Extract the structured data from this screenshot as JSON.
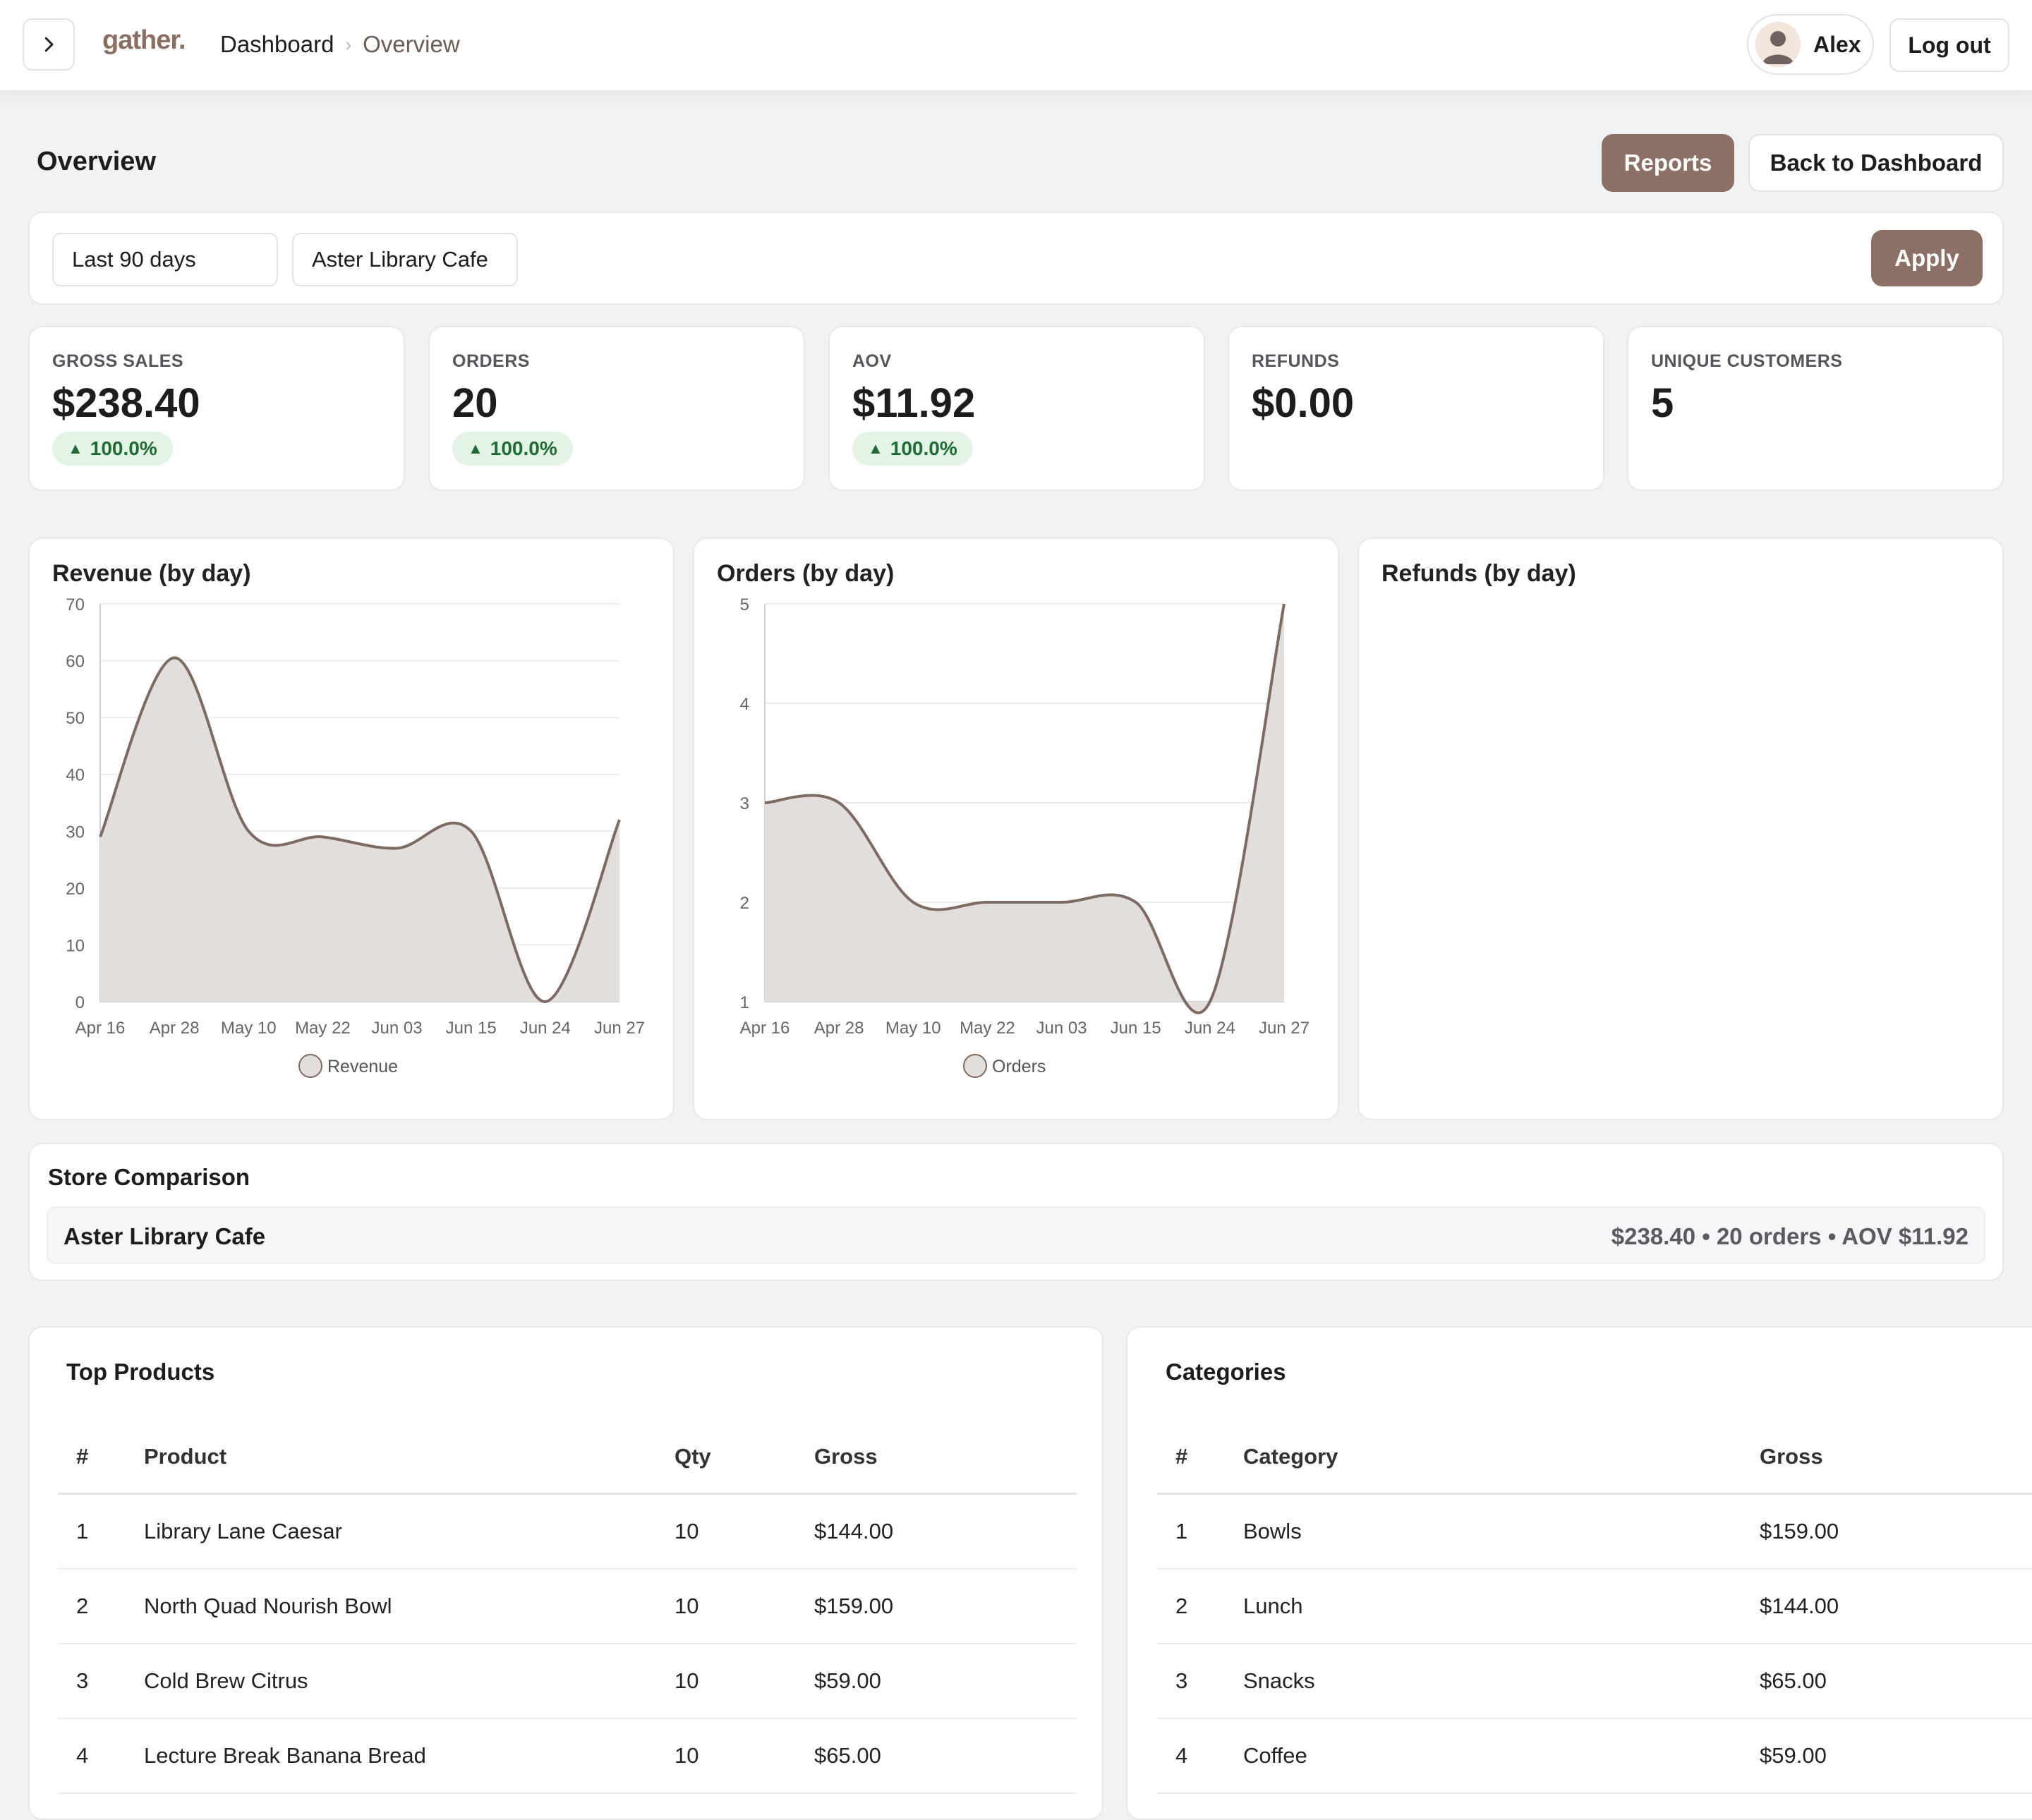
{
  "header": {
    "logo": "gather.",
    "breadcrumb": [
      "Dashboard",
      "Overview"
    ],
    "user_name": "Alex",
    "logout_label": "Log out"
  },
  "page": {
    "title": "Overview",
    "reports_label": "Reports",
    "back_label": "Back to Dashboard"
  },
  "filters": {
    "range": "Last 90 days",
    "store": "Aster Library Cafe",
    "apply_label": "Apply"
  },
  "kpis": [
    {
      "label": "GROSS SALES",
      "value": "$238.40",
      "change": "100.0%"
    },
    {
      "label": "ORDERS",
      "value": "20",
      "change": "100.0%"
    },
    {
      "label": "AOV",
      "value": "$11.92",
      "change": "100.0%"
    },
    {
      "label": "REFUNDS",
      "value": "$0.00"
    },
    {
      "label": "UNIQUE CUSTOMERS",
      "value": "5"
    }
  ],
  "colors": {
    "accent": "#8d7065",
    "line": "#7d6a62",
    "fill": "#e2dedb",
    "badge_bg": "#e3f4e7",
    "badge_text": "#1f6b34"
  },
  "chart_data": [
    {
      "type": "area",
      "title": "Revenue (by day)",
      "x": [
        "Apr 16",
        "Apr 28",
        "May 10",
        "May 22",
        "Jun 03",
        "Jun 15",
        "Jun 24",
        "Jun 27"
      ],
      "series": [
        {
          "name": "Revenue",
          "values": [
            29,
            60.5,
            30,
            29,
            27,
            30,
            0,
            32
          ]
        }
      ],
      "ylim": [
        0,
        70
      ],
      "yticks": [
        0,
        10,
        20,
        30,
        40,
        50,
        60,
        70
      ],
      "grid": true,
      "legend": "bottom"
    },
    {
      "type": "area",
      "title": "Orders (by day)",
      "x": [
        "Apr 16",
        "Apr 28",
        "May 10",
        "May 22",
        "Jun 03",
        "Jun 15",
        "Jun 24",
        "Jun 27"
      ],
      "series": [
        {
          "name": "Orders",
          "values": [
            3,
            3,
            2,
            2,
            2,
            2,
            1,
            5
          ]
        }
      ],
      "ylim": [
        1,
        5
      ],
      "yticks": [
        1,
        2,
        3,
        4,
        5
      ],
      "grid": true,
      "legend": "bottom"
    },
    {
      "type": "area",
      "title": "Refunds (by day)",
      "x": [],
      "series": []
    }
  ],
  "comparison": {
    "title": "Store Comparison",
    "rows": [
      {
        "name": "Aster Library Cafe",
        "summary": "$238.40 • 20 orders • AOV $11.92"
      }
    ]
  },
  "top_products": {
    "title": "Top Products",
    "columns": [
      "#",
      "Product",
      "Qty",
      "Gross"
    ],
    "rows": [
      [
        "1",
        "Library Lane Caesar",
        "10",
        "$144.00"
      ],
      [
        "2",
        "North Quad Nourish Bowl",
        "10",
        "$159.00"
      ],
      [
        "3",
        "Cold Brew Citrus",
        "10",
        "$59.00"
      ],
      [
        "4",
        "Lecture Break Banana Bread",
        "10",
        "$65.00"
      ]
    ]
  },
  "categories": {
    "title": "Categories",
    "columns": [
      "#",
      "Category",
      "Gross"
    ],
    "rows": [
      [
        "1",
        "Bowls",
        "$159.00"
      ],
      [
        "2",
        "Lunch",
        "$144.00"
      ],
      [
        "3",
        "Snacks",
        "$65.00"
      ],
      [
        "4",
        "Coffee",
        "$59.00"
      ]
    ]
  }
}
